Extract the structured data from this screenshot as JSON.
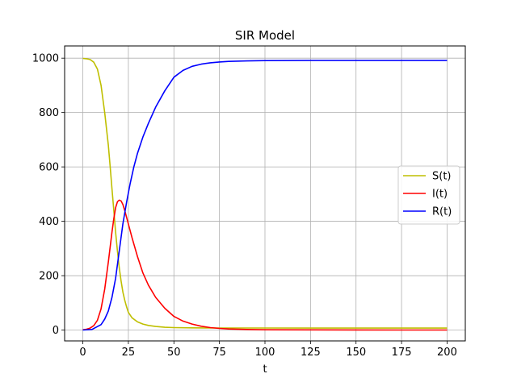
{
  "chart_data": {
    "type": "line",
    "title": "SIR Model",
    "xlabel": "t",
    "ylabel": "",
    "xlim": [
      -10,
      210
    ],
    "ylim": [
      -40,
      1045
    ],
    "xticks": [
      0,
      25,
      50,
      75,
      100,
      125,
      150,
      175,
      200
    ],
    "yticks": [
      0,
      200,
      400,
      600,
      800,
      1000
    ],
    "grid": true,
    "legend_position": "right",
    "series": [
      {
        "name": "S(t)",
        "color": "#bfbf00",
        "x": [
          0,
          2,
          4,
          6,
          8,
          10,
          12,
          14,
          15,
          16,
          17,
          18,
          19,
          20,
          21,
          22,
          23,
          24,
          25,
          27,
          30,
          33,
          36,
          40,
          45,
          50,
          60,
          75,
          100,
          125,
          150,
          175,
          200
        ],
        "y": [
          999,
          998,
          995,
          985,
          960,
          900,
          800,
          680,
          600,
          520,
          440,
          360,
          290,
          230,
          180,
          140,
          110,
          85,
          65,
          45,
          30,
          22,
          17,
          13,
          10,
          9,
          8,
          7.5,
          7.3,
          7.2,
          7.2,
          7.2,
          7.2
        ]
      },
      {
        "name": "I(t)",
        "color": "#ff0000",
        "x": [
          0,
          2,
          4,
          6,
          8,
          10,
          12,
          14,
          16,
          17,
          18,
          19,
          20,
          21,
          22,
          23,
          25,
          27,
          30,
          33,
          36,
          40,
          45,
          50,
          55,
          60,
          65,
          70,
          75,
          80,
          90,
          100,
          125,
          150,
          175,
          200
        ],
        "y": [
          1,
          3,
          7,
          16,
          36,
          78,
          150,
          250,
          360,
          410,
          450,
          472,
          478,
          475,
          462,
          440,
          390,
          340,
          270,
          210,
          165,
          120,
          80,
          50,
          33,
          22,
          14,
          9,
          6,
          4,
          2,
          1,
          0.5,
          0.2,
          0.1,
          0.1
        ]
      },
      {
        "name": "R(t)",
        "color": "#0000ff",
        "x": [
          0,
          5,
          10,
          12,
          14,
          16,
          18,
          20,
          22,
          24,
          26,
          28,
          30,
          33,
          36,
          40,
          45,
          50,
          55,
          60,
          65,
          70,
          75,
          80,
          90,
          100,
          125,
          150,
          175,
          200
        ],
        "y": [
          0,
          2,
          20,
          40,
          70,
          120,
          190,
          290,
          390,
          470,
          540,
          600,
          650,
          710,
          760,
          820,
          880,
          930,
          955,
          970,
          978,
          983,
          986,
          988,
          990,
          991,
          992,
          992,
          992,
          992
        ]
      }
    ]
  }
}
